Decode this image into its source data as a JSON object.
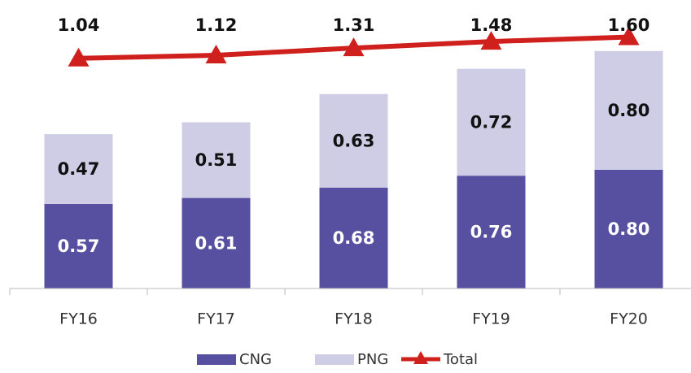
{
  "chart_data": {
    "type": "stacked-bar-line",
    "categories": [
      "FY16",
      "FY17",
      "FY18",
      "FY19",
      "FY20"
    ],
    "series": [
      {
        "name": "CNG",
        "color": "#574fa0",
        "values": [
          0.57,
          0.61,
          0.68,
          0.76,
          0.8
        ],
        "value_labels": [
          "0.57",
          "0.61",
          "0.68",
          "0.76",
          "0.80"
        ]
      },
      {
        "name": "PNG",
        "color": "#cfcde6",
        "values": [
          0.47,
          0.51,
          0.63,
          0.72,
          0.8
        ],
        "value_labels": [
          "0.47",
          "0.51",
          "0.63",
          "0.72",
          "0.80"
        ]
      },
      {
        "name": "Total",
        "color": "#d0201e",
        "axis": "y2",
        "values": [
          1.04,
          1.12,
          1.31,
          1.48,
          1.6
        ],
        "value_labels": [
          "1.04",
          "1.12",
          "1.31",
          "1.48",
          "1.60"
        ]
      }
    ],
    "ylim": [
      0,
      1.9
    ],
    "y2lim": [
      -5,
      2.4
    ]
  }
}
